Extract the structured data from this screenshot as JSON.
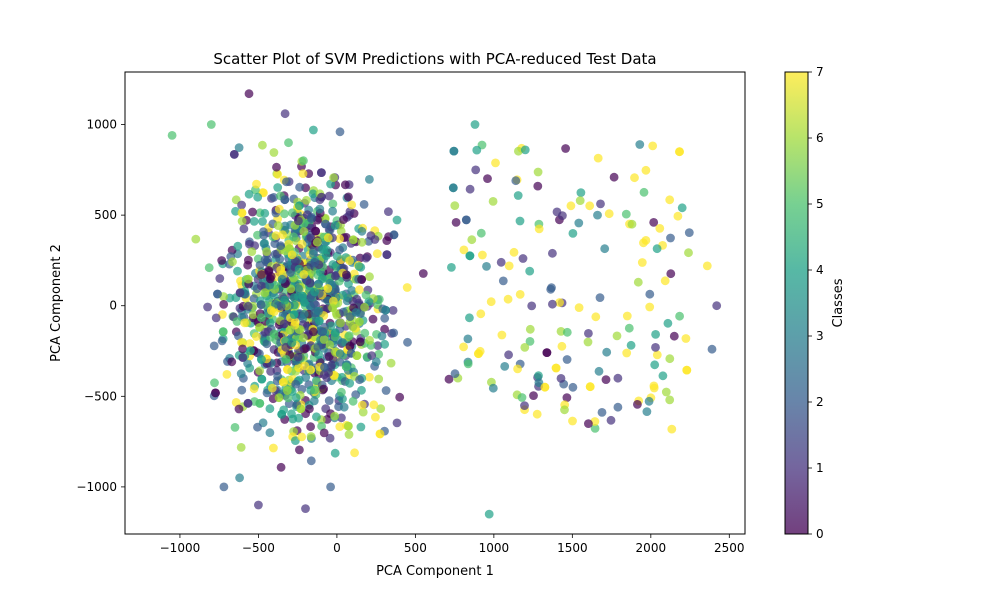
{
  "chart_data": {
    "type": "scatter",
    "title": "Scatter Plot of SVM Predictions with PCA-reduced Test Data",
    "xlabel": "PCA Component 1",
    "ylabel": "PCA Component 2",
    "xlim": [
      -1350,
      2600
    ],
    "ylim": [
      -1260,
      1290
    ],
    "xticks": [
      -1000,
      -500,
      0,
      500,
      1000,
      1500,
      2000,
      2500
    ],
    "yticks": [
      -1000,
      -500,
      0,
      500,
      1000
    ],
    "xtick_labels": [
      "−1000",
      "−500",
      "0",
      "500",
      "1000",
      "1500",
      "2000",
      "2500"
    ],
    "ytick_labels": [
      "−1000",
      "−500",
      "0",
      "500",
      "1000"
    ],
    "grid": false,
    "colorbar": {
      "label": "Classes",
      "min": 0,
      "max": 7,
      "ticks": [
        0,
        1,
        2,
        3,
        4,
        5,
        6,
        7
      ],
      "tick_labels": [
        "0",
        "1",
        "2",
        "3",
        "4",
        "5",
        "6",
        "7"
      ],
      "colormap": "viridis"
    },
    "colormap_colors": [
      "#440154",
      "#46327e",
      "#365c8d",
      "#277f8e",
      "#1fa187",
      "#4ac16d",
      "#a0da39",
      "#fde725"
    ],
    "point_alpha": 0.7,
    "point_count": 1400,
    "series": [
      {
        "x": [
          -330,
          -1050,
          -150,
          1280,
          2420,
          -40,
          880,
          1790,
          1930,
          2030,
          -800,
          -720,
          1550,
          920,
          1200,
          1140,
          1880,
          2360,
          1600,
          -560,
          1920,
          970,
          1660,
          1790,
          20,
          -620,
          2120,
          2390,
          -500,
          -200
        ],
        "y": [
          1060,
          940,
          970,
          660,
          0,
          -1000,
          1000,
          -400,
          890,
          -230,
          1000,
          -1000,
          580,
          400,
          860,
          690,
          450,
          220,
          -200,
          1170,
          130,
          -1150,
          500,
          -560,
          960,
          -950,
          -520,
          -240,
          -1100,
          -1120
        ],
        "c": [
          1,
          5,
          4,
          0,
          1,
          2,
          4,
          1,
          3,
          1,
          5,
          2,
          6,
          5,
          4,
          2,
          6,
          7,
          6,
          0,
          6,
          4,
          3,
          2,
          2,
          3,
          6,
          2,
          1,
          1
        ]
      }
    ]
  }
}
